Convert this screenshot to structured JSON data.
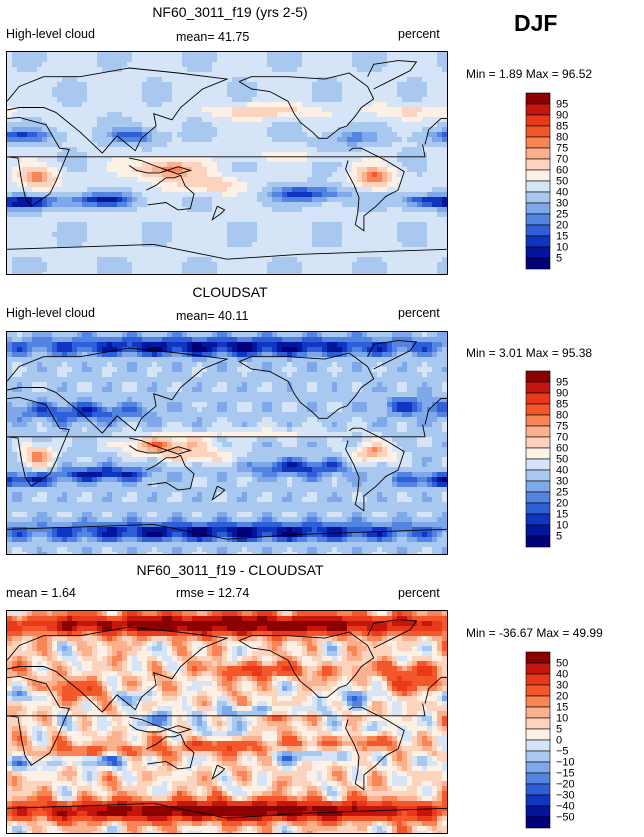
{
  "season": "DJF",
  "units_label": "percent",
  "panels": [
    {
      "title": "NF60_3011_f19 (yrs 2-5)",
      "left_label": "High-level cloud",
      "stat_label": "mean=  41.75",
      "right_label": "percent",
      "minmax_label": "Min =   1.89 Max =  96.52",
      "min": 1.89,
      "max": 96.52,
      "mean": 41.75,
      "kind": "model"
    },
    {
      "title": "CLOUDSAT",
      "left_label": "High-level cloud",
      "stat_label": "mean=  40.11",
      "right_label": "percent",
      "minmax_label": "Min =   3.01 Max =  95.38",
      "min": 3.01,
      "max": 95.38,
      "mean": 40.11,
      "kind": "obs"
    },
    {
      "title": "NF60_3011_f19 - CLOUDSAT",
      "left_label": "mean =    1.64",
      "stat_label": "rmse =   12.74",
      "right_label": "percent",
      "minmax_label": "Min = -36.67 Max =  49.99",
      "min": -36.67,
      "max": 49.99,
      "mean": 1.64,
      "rmse": 12.74,
      "kind": "diff"
    }
  ],
  "colorbars": {
    "percent_levels": [
      "95",
      "90",
      "85",
      "80",
      "75",
      "70",
      "60",
      "50",
      "40",
      "30",
      "25",
      "20",
      "15",
      "10",
      "5"
    ],
    "diff_levels": [
      "50",
      "40",
      "30",
      "20",
      "15",
      "10",
      "5",
      "0",
      "−5",
      "−10",
      "−15",
      "−20",
      "−30",
      "−40",
      "−50"
    ],
    "colors": [
      "#8b0000",
      "#c4160c",
      "#e8391a",
      "#f4572a",
      "#f98456",
      "#fbb08e",
      "#fcd3bd",
      "#fdf0e4",
      "#d5e4f7",
      "#a9c8f0",
      "#7ea8ea",
      "#5484e2",
      "#2e5ed8",
      "#1035c2",
      "#03159a",
      "#00007a"
    ]
  },
  "chart_data": [
    {
      "type": "heatmap",
      "title": "NF60_3011_f19 (yrs 2-5)",
      "variable": "High-level cloud",
      "units": "percent",
      "mean": 41.75,
      "min": 1.89,
      "max": 96.52,
      "contour_levels": [
        5,
        10,
        15,
        20,
        25,
        30,
        40,
        50,
        60,
        70,
        75,
        80,
        85,
        90,
        95
      ]
    },
    {
      "type": "heatmap",
      "title": "CLOUDSAT",
      "variable": "High-level cloud",
      "units": "percent",
      "mean": 40.11,
      "min": 3.01,
      "max": 95.38,
      "contour_levels": [
        5,
        10,
        15,
        20,
        25,
        30,
        40,
        50,
        60,
        70,
        75,
        80,
        85,
        90,
        95
      ]
    },
    {
      "type": "heatmap",
      "title": "NF60_3011_f19 - CLOUDSAT",
      "units": "percent",
      "mean": 1.64,
      "rmse": 12.74,
      "min": -36.67,
      "max": 49.99,
      "contour_levels": [
        -50,
        -40,
        -30,
        -20,
        -15,
        -10,
        -5,
        0,
        5,
        10,
        15,
        20,
        30,
        40,
        50
      ]
    }
  ]
}
